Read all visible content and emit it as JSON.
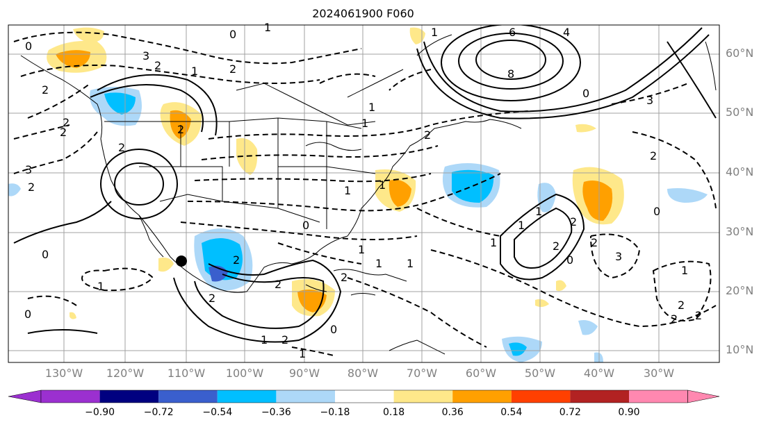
{
  "title": "2024061900 F060",
  "lat_labels": [
    "60°N",
    "50°N",
    "40°N",
    "30°N",
    "20°N",
    "10°N"
  ],
  "lon_labels": [
    "130°W",
    "120°W",
    "110°W",
    "100°W",
    "90°W",
    "80°W",
    "70°W",
    "60°W",
    "50°W",
    "40°W",
    "30°W"
  ],
  "colorbar": {
    "ticks": [
      "−0.90",
      "−0.72",
      "−0.54",
      "−0.36",
      "−0.18",
      "0.18",
      "0.36",
      "0.54",
      "0.72",
      "0.90"
    ],
    "colors": [
      "#9b30d0",
      "#000080",
      "#3a5fcd",
      "#00bfff",
      "#add8f8",
      "#ffffff",
      "#fee88a",
      "#ffa000",
      "#ff4000",
      "#b22222",
      "#ff88b0"
    ]
  },
  "contour_labels": [
    "0",
    "3",
    "2",
    "1",
    "1",
    "0",
    "2",
    "6",
    "8",
    "4",
    "3",
    "1",
    "0",
    "2",
    "3",
    "2",
    "0",
    "2",
    "1",
    "1",
    "2",
    "2",
    "2",
    "3",
    "2",
    "2",
    "1",
    "0",
    "1",
    "2",
    "2",
    "2",
    "2",
    "1",
    "1",
    "1",
    "2",
    "0",
    "2",
    "2",
    "2",
    "1",
    "1",
    "1",
    "1",
    "0",
    "2",
    "2",
    "0",
    "0",
    "1",
    "1",
    "2",
    "1"
  ]
}
